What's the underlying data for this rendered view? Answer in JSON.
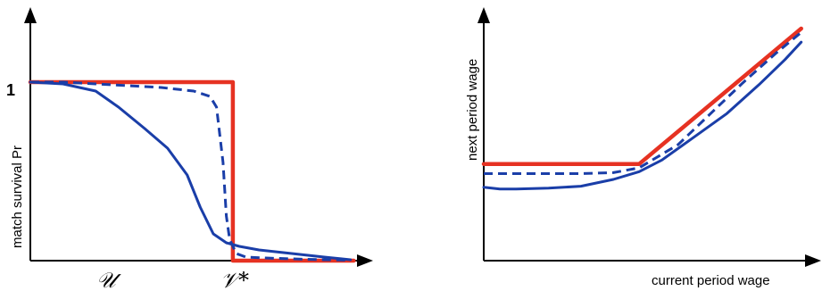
{
  "chart_data": [
    {
      "type": "line",
      "panel": "left",
      "ylabel": "match survival Pr",
      "xlabel": "",
      "y_tick_label": "1",
      "x_markers": [
        {
          "label": "𝒰",
          "x": 0.34
        },
        {
          "label": "𝒱*",
          "x": 0.64
        }
      ],
      "xlim": [
        0,
        1
      ],
      "ylim": [
        0,
        1.25
      ],
      "series": [
        {
          "style": "solid",
          "color": "#e63222",
          "x": [
            0,
            0.62,
            0.62,
            0.99
          ],
          "y": [
            1,
            1,
            0,
            0
          ]
        },
        {
          "style": "dashed",
          "color": "#1a3ea8",
          "x": [
            0,
            0.1,
            0.2,
            0.3,
            0.4,
            0.5,
            0.55,
            0.57,
            0.59,
            0.6,
            0.61,
            0.63,
            0.66,
            0.72,
            0.8,
            0.9,
            0.98
          ],
          "y": [
            1,
            1,
            0.99,
            0.98,
            0.97,
            0.95,
            0.92,
            0.86,
            0.55,
            0.25,
            0.12,
            0.04,
            0.02,
            0.015,
            0.01,
            0.005,
            0.003
          ]
        },
        {
          "style": "solid",
          "color": "#1a3ea8",
          "x": [
            0,
            0.1,
            0.2,
            0.27,
            0.35,
            0.42,
            0.48,
            0.52,
            0.56,
            0.6,
            0.64,
            0.7,
            0.8,
            0.9,
            0.98
          ],
          "y": [
            1,
            0.99,
            0.95,
            0.86,
            0.74,
            0.63,
            0.48,
            0.3,
            0.15,
            0.1,
            0.08,
            0.06,
            0.04,
            0.02,
            0.005
          ]
        }
      ]
    },
    {
      "type": "line",
      "panel": "right",
      "ylabel": "next period wage",
      "xlabel": "current period wage",
      "xlim": [
        0,
        1
      ],
      "ylim": [
        0,
        1.2
      ],
      "series": [
        {
          "style": "solid",
          "color": "#e63222",
          "x": [
            0,
            0.48,
            0.98
          ],
          "y": [
            0.5,
            0.5,
            1.2
          ]
        },
        {
          "style": "dashed",
          "color": "#1a3ea8",
          "x": [
            0,
            0.1,
            0.2,
            0.3,
            0.4,
            0.48,
            0.6,
            0.7,
            0.8,
            0.9,
            0.98
          ],
          "y": [
            0.45,
            0.45,
            0.45,
            0.45,
            0.455,
            0.48,
            0.6,
            0.76,
            0.92,
            1.07,
            1.18
          ]
        },
        {
          "style": "solid",
          "color": "#1a3ea8",
          "x": [
            0,
            0.05,
            0.1,
            0.2,
            0.3,
            0.4,
            0.48,
            0.55,
            0.65,
            0.75,
            0.85,
            0.93,
            0.98
          ],
          "y": [
            0.38,
            0.37,
            0.37,
            0.375,
            0.385,
            0.42,
            0.46,
            0.52,
            0.64,
            0.76,
            0.91,
            1.04,
            1.13
          ]
        }
      ]
    }
  ]
}
